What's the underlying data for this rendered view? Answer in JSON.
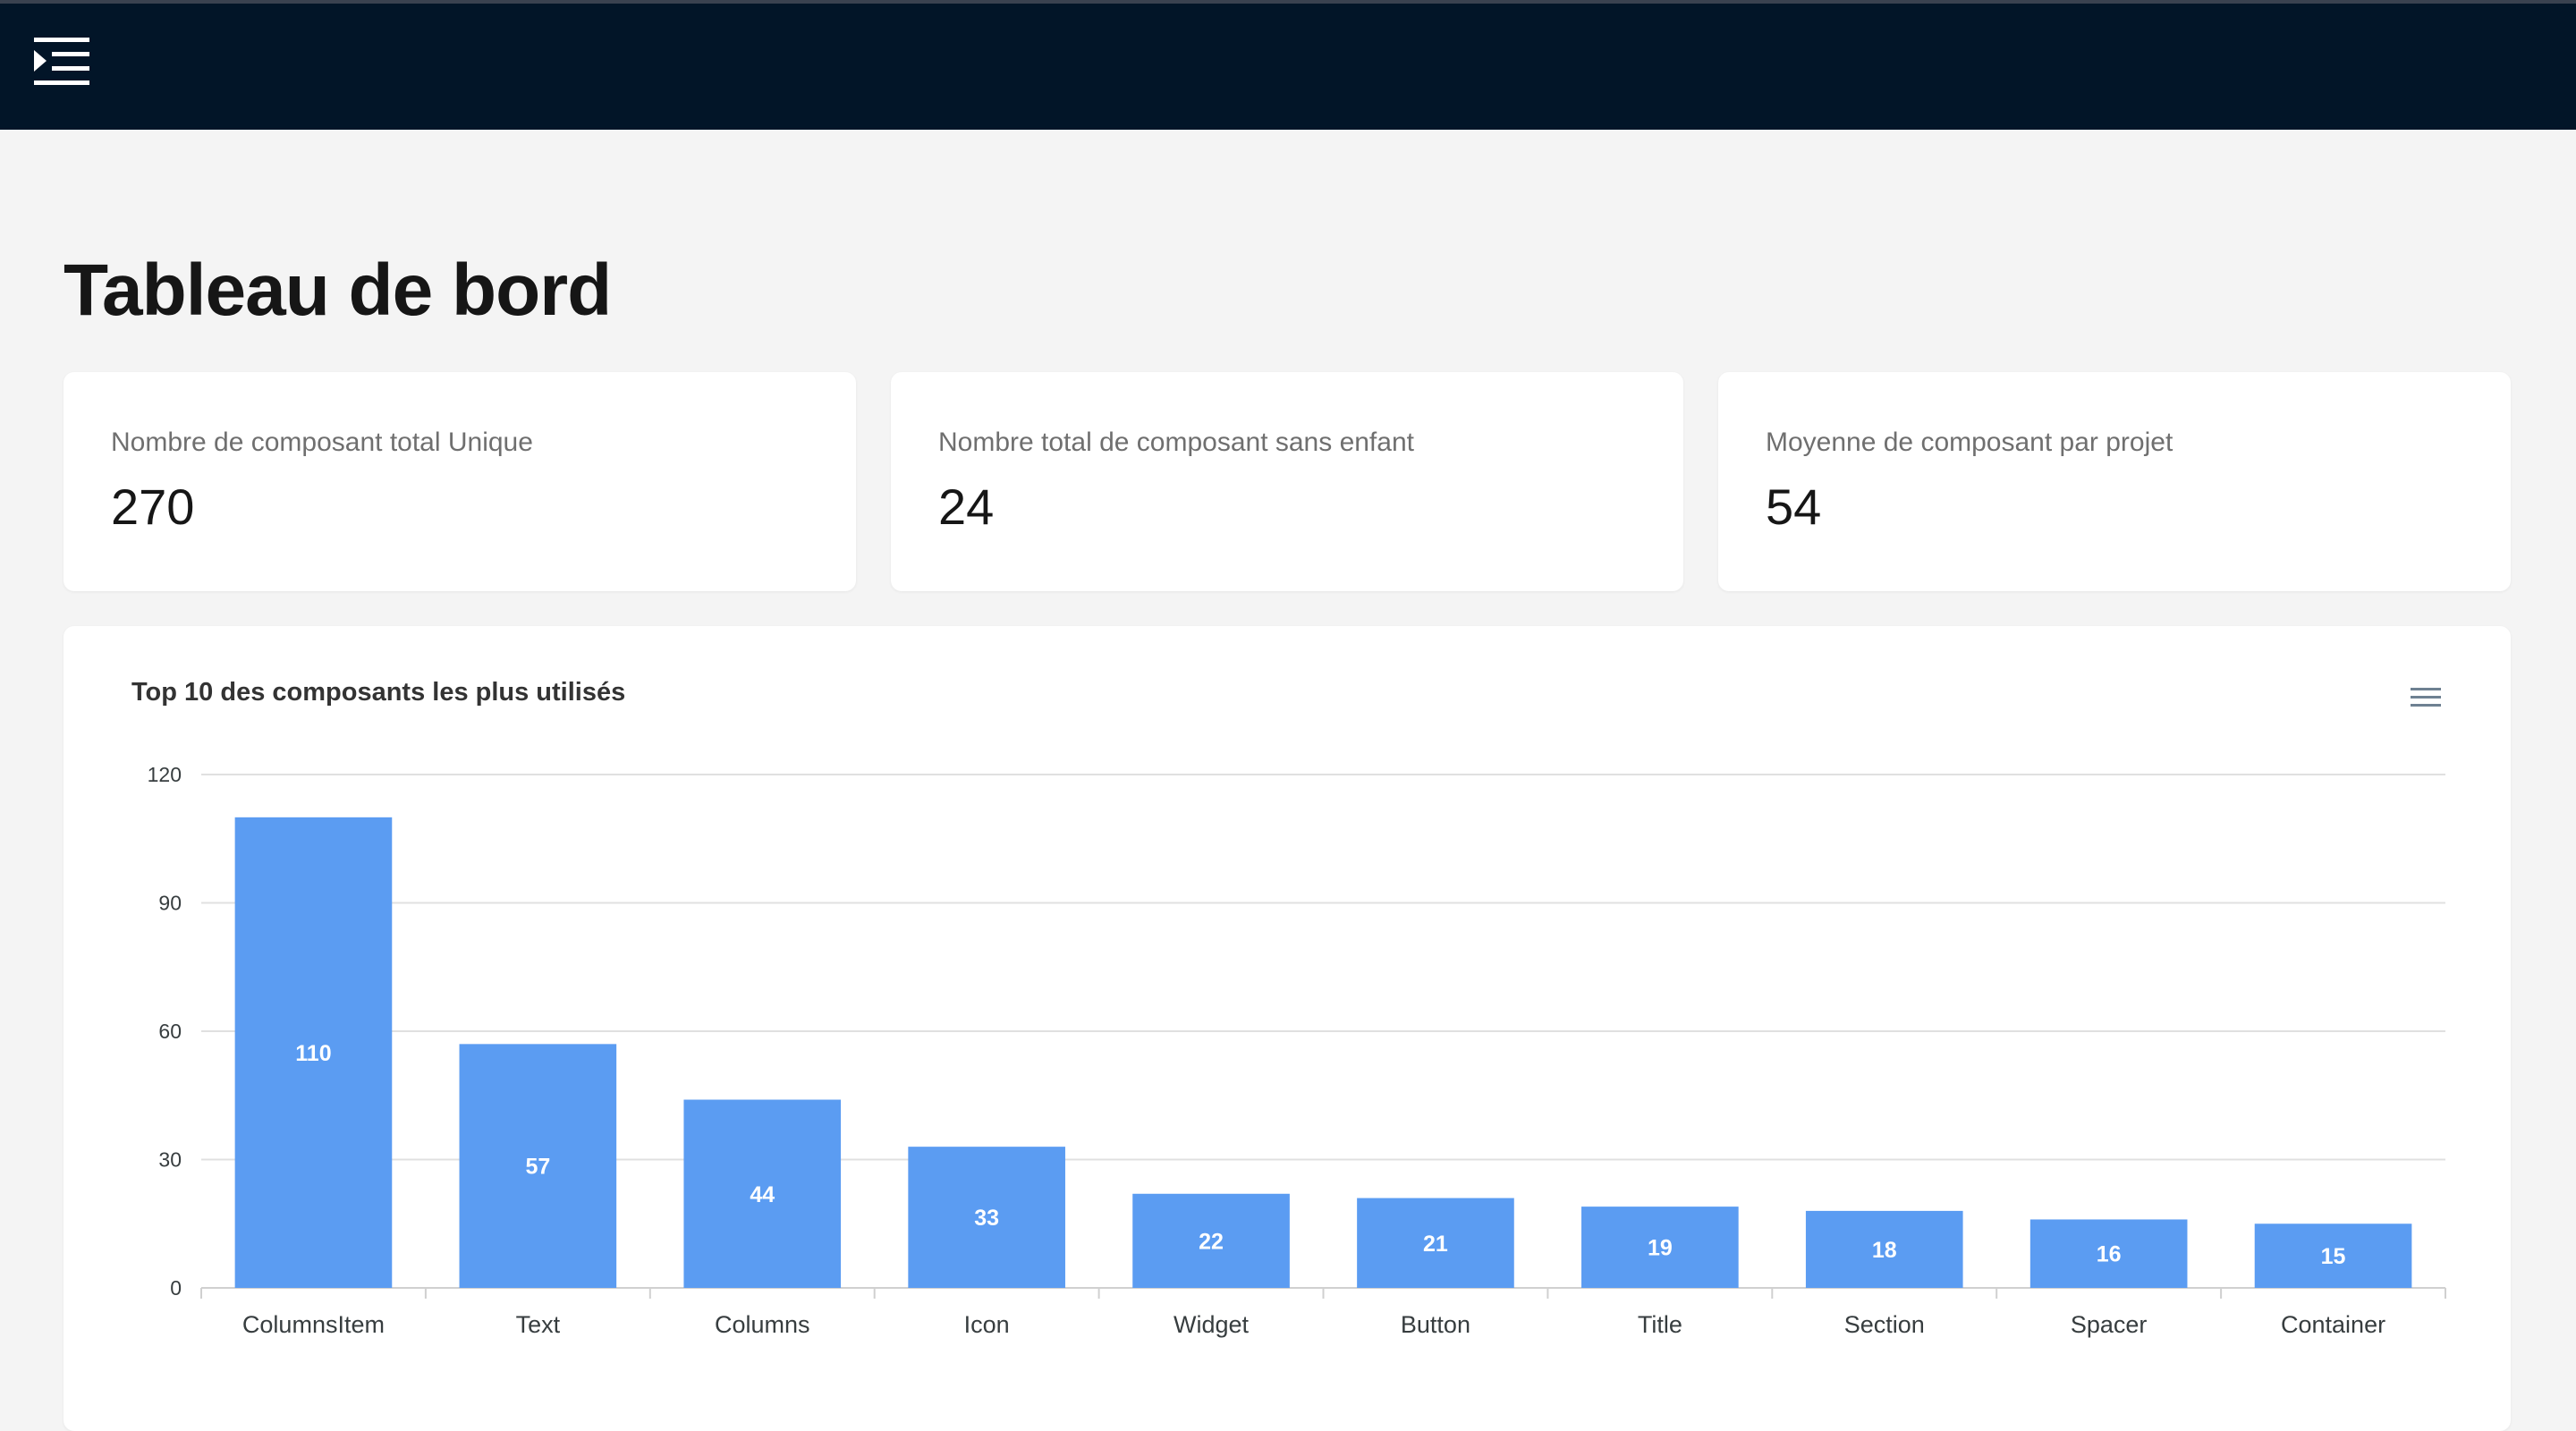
{
  "header": {
    "menu_icon": "menu-collapse-icon"
  },
  "page": {
    "title": "Tableau de bord"
  },
  "stats": [
    {
      "label": "Nombre de composant total Unique",
      "value": "270"
    },
    {
      "label": "Nombre total de composant sans enfant",
      "value": "24"
    },
    {
      "label": "Moyenne de composant par projet",
      "value": "54"
    }
  ],
  "chart": {
    "menu_icon": "hamburger-menu-icon",
    "bar_color": "#5b9cf2"
  },
  "chart_data": {
    "type": "bar",
    "title": "Top 10 des composants les plus utilisés",
    "categories": [
      "ColumnsItem",
      "Text",
      "Columns",
      "Icon",
      "Widget",
      "Button",
      "Title",
      "Section",
      "Spacer",
      "Container"
    ],
    "values": [
      110,
      57,
      44,
      33,
      22,
      21,
      19,
      18,
      16,
      15
    ],
    "yticks": [
      0,
      30,
      60,
      90,
      120
    ],
    "ylim": [
      0,
      120
    ],
    "xlabel": "",
    "ylabel": "",
    "grid": true,
    "data_labels": true
  }
}
